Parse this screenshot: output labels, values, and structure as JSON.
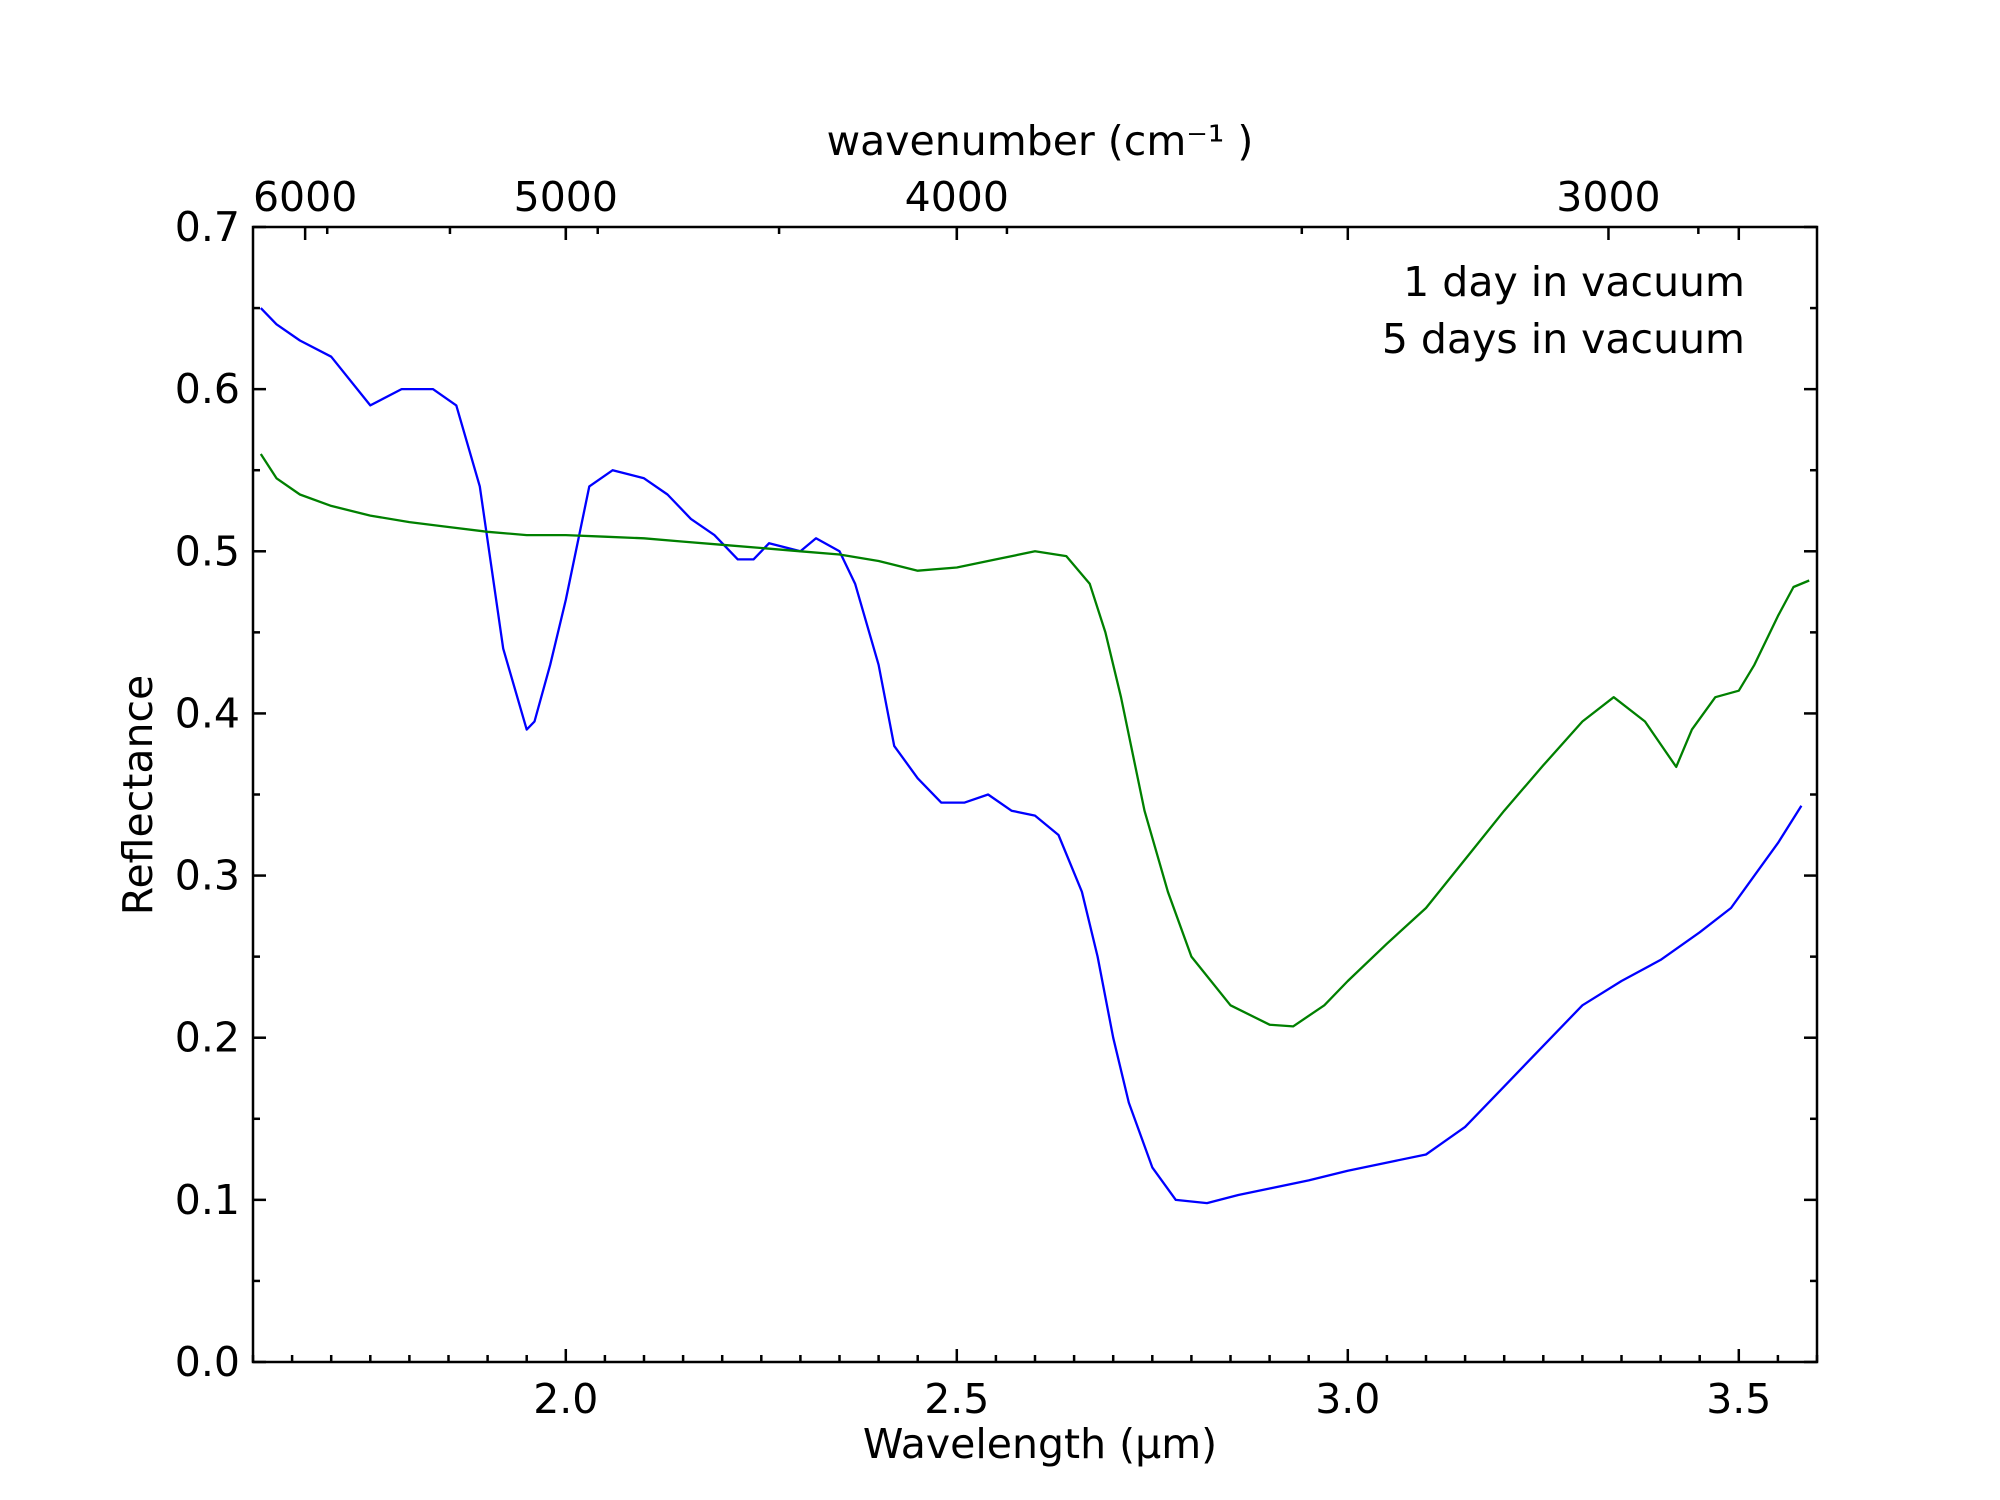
{
  "chart_data": {
    "type": "line",
    "xlabel": "Wavelength (μm)",
    "ylabel": "Reflectance",
    "top_xlabel": "wavenumber (cm⁻¹ )",
    "xlim": [
      1.6,
      3.6
    ],
    "ylim": [
      0.0,
      0.7
    ],
    "x_ticks": [
      2.0,
      2.5,
      3.0,
      3.5
    ],
    "x_tick_labels": [
      "2.0",
      "2.5",
      "3.0",
      "3.5"
    ],
    "y_ticks": [
      0.0,
      0.1,
      0.2,
      0.3,
      0.4,
      0.5,
      0.6,
      0.7
    ],
    "y_tick_labels": [
      "0.0",
      "0.1",
      "0.2",
      "0.3",
      "0.4",
      "0.5",
      "0.6",
      "0.7"
    ],
    "top_ticks": [
      6000,
      5000,
      4000,
      3000
    ],
    "top_tick_labels": [
      "6000",
      "5000",
      "4000",
      "3000"
    ],
    "grid": false,
    "legend_position": "top-right",
    "series": [
      {
        "name": "1 day in vacuum",
        "color": "#0000ff",
        "points": [
          [
            1.61,
            0.65
          ],
          [
            1.63,
            0.64
          ],
          [
            1.66,
            0.63
          ],
          [
            1.7,
            0.62
          ],
          [
            1.75,
            0.59
          ],
          [
            1.79,
            0.6
          ],
          [
            1.83,
            0.6
          ],
          [
            1.86,
            0.59
          ],
          [
            1.89,
            0.54
          ],
          [
            1.92,
            0.44
          ],
          [
            1.95,
            0.39
          ],
          [
            1.96,
            0.395
          ],
          [
            1.98,
            0.43
          ],
          [
            2.0,
            0.47
          ],
          [
            2.03,
            0.54
          ],
          [
            2.06,
            0.55
          ],
          [
            2.1,
            0.545
          ],
          [
            2.13,
            0.535
          ],
          [
            2.16,
            0.52
          ],
          [
            2.19,
            0.51
          ],
          [
            2.22,
            0.495
          ],
          [
            2.24,
            0.495
          ],
          [
            2.26,
            0.505
          ],
          [
            2.3,
            0.5
          ],
          [
            2.32,
            0.508
          ],
          [
            2.35,
            0.5
          ],
          [
            2.37,
            0.48
          ],
          [
            2.4,
            0.43
          ],
          [
            2.42,
            0.38
          ],
          [
            2.45,
            0.36
          ],
          [
            2.48,
            0.345
          ],
          [
            2.51,
            0.345
          ],
          [
            2.54,
            0.35
          ],
          [
            2.57,
            0.34
          ],
          [
            2.6,
            0.337
          ],
          [
            2.63,
            0.325
          ],
          [
            2.66,
            0.29
          ],
          [
            2.68,
            0.25
          ],
          [
            2.7,
            0.2
          ],
          [
            2.72,
            0.16
          ],
          [
            2.75,
            0.12
          ],
          [
            2.78,
            0.1
          ],
          [
            2.82,
            0.098
          ],
          [
            2.86,
            0.103
          ],
          [
            2.9,
            0.107
          ],
          [
            2.95,
            0.112
          ],
          [
            3.0,
            0.118
          ],
          [
            3.05,
            0.123
          ],
          [
            3.1,
            0.128
          ],
          [
            3.15,
            0.145
          ],
          [
            3.2,
            0.17
          ],
          [
            3.25,
            0.195
          ],
          [
            3.3,
            0.22
          ],
          [
            3.35,
            0.235
          ],
          [
            3.4,
            0.248
          ],
          [
            3.45,
            0.265
          ],
          [
            3.49,
            0.28
          ],
          [
            3.52,
            0.3
          ],
          [
            3.55,
            0.32
          ],
          [
            3.58,
            0.343
          ]
        ]
      },
      {
        "name": "5 days in vacuum",
        "color": "#008000",
        "points": [
          [
            1.61,
            0.56
          ],
          [
            1.63,
            0.545
          ],
          [
            1.66,
            0.535
          ],
          [
            1.7,
            0.528
          ],
          [
            1.75,
            0.522
          ],
          [
            1.8,
            0.518
          ],
          [
            1.85,
            0.515
          ],
          [
            1.9,
            0.512
          ],
          [
            1.95,
            0.51
          ],
          [
            2.0,
            0.51
          ],
          [
            2.05,
            0.509
          ],
          [
            2.1,
            0.508
          ],
          [
            2.15,
            0.506
          ],
          [
            2.2,
            0.504
          ],
          [
            2.25,
            0.502
          ],
          [
            2.3,
            0.5
          ],
          [
            2.35,
            0.498
          ],
          [
            2.4,
            0.494
          ],
          [
            2.45,
            0.488
          ],
          [
            2.5,
            0.49
          ],
          [
            2.55,
            0.495
          ],
          [
            2.6,
            0.5
          ],
          [
            2.64,
            0.497
          ],
          [
            2.67,
            0.48
          ],
          [
            2.69,
            0.45
          ],
          [
            2.71,
            0.41
          ],
          [
            2.74,
            0.34
          ],
          [
            2.77,
            0.29
          ],
          [
            2.8,
            0.25
          ],
          [
            2.85,
            0.22
          ],
          [
            2.9,
            0.208
          ],
          [
            2.93,
            0.207
          ],
          [
            2.97,
            0.22
          ],
          [
            3.0,
            0.235
          ],
          [
            3.05,
            0.258
          ],
          [
            3.1,
            0.28
          ],
          [
            3.15,
            0.31
          ],
          [
            3.2,
            0.34
          ],
          [
            3.25,
            0.368
          ],
          [
            3.3,
            0.395
          ],
          [
            3.34,
            0.41
          ],
          [
            3.38,
            0.395
          ],
          [
            3.42,
            0.367
          ],
          [
            3.44,
            0.39
          ],
          [
            3.47,
            0.41
          ],
          [
            3.5,
            0.414
          ],
          [
            3.52,
            0.43
          ],
          [
            3.55,
            0.46
          ],
          [
            3.57,
            0.478
          ],
          [
            3.59,
            0.482
          ]
        ]
      }
    ]
  }
}
